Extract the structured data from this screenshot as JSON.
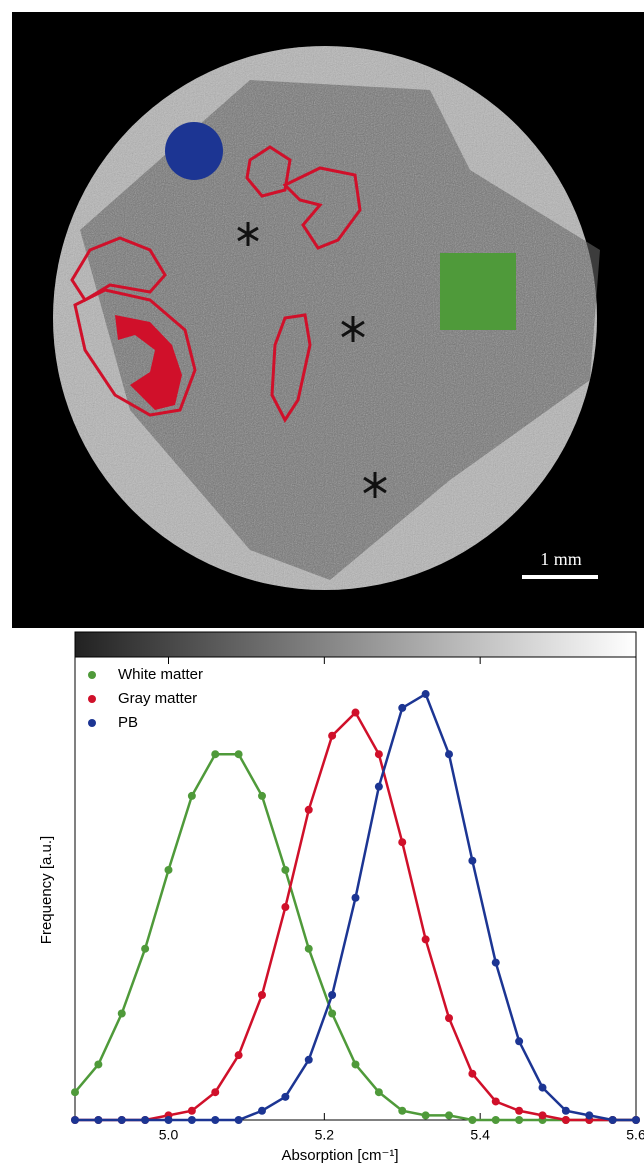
{
  "scale_bar_label": "1 mm",
  "chart_data": {
    "type": "line",
    "markers": true,
    "x_label": "Absorption [cm⁻¹]",
    "y_label": "Frequency [a.u.]",
    "x": [
      4.88,
      4.91,
      4.94,
      4.97,
      5.0,
      5.03,
      5.06,
      5.09,
      5.12,
      5.15,
      5.18,
      5.21,
      5.24,
      5.27,
      5.3,
      5.33,
      5.36,
      5.39,
      5.42,
      5.45,
      5.48,
      5.51,
      5.54,
      5.57,
      5.6
    ],
    "series": [
      {
        "name": "White matter",
        "color": "#4f9a3a",
        "values": [
          0.06,
          0.12,
          0.23,
          0.37,
          0.54,
          0.7,
          0.79,
          0.79,
          0.7,
          0.54,
          0.37,
          0.23,
          0.12,
          0.06,
          0.02,
          0.01,
          0.01,
          0,
          0,
          0,
          0,
          0,
          0,
          0,
          0
        ]
      },
      {
        "name": "Gray matter",
        "color": "#d0102a",
        "values": [
          0,
          0,
          0,
          0,
          0.01,
          0.02,
          0.06,
          0.14,
          0.27,
          0.46,
          0.67,
          0.83,
          0.88,
          0.79,
          0.6,
          0.39,
          0.22,
          0.1,
          0.04,
          0.02,
          0.01,
          0,
          0,
          0,
          0
        ]
      },
      {
        "name": "PB",
        "color": "#1c3593",
        "values": [
          0,
          0,
          0,
          0,
          0,
          0,
          0,
          0,
          0.02,
          0.05,
          0.13,
          0.27,
          0.48,
          0.72,
          0.89,
          0.92,
          0.79,
          0.56,
          0.34,
          0.17,
          0.07,
          0.02,
          0.01,
          0,
          0
        ]
      }
    ],
    "xlim": [
      4.88,
      5.6
    ],
    "ylim": [
      0,
      1
    ],
    "xticks": [
      {
        "value": 5,
        "label": "5.0"
      },
      5.2,
      5.4,
      5.6
    ],
    "legend": "top-left"
  }
}
